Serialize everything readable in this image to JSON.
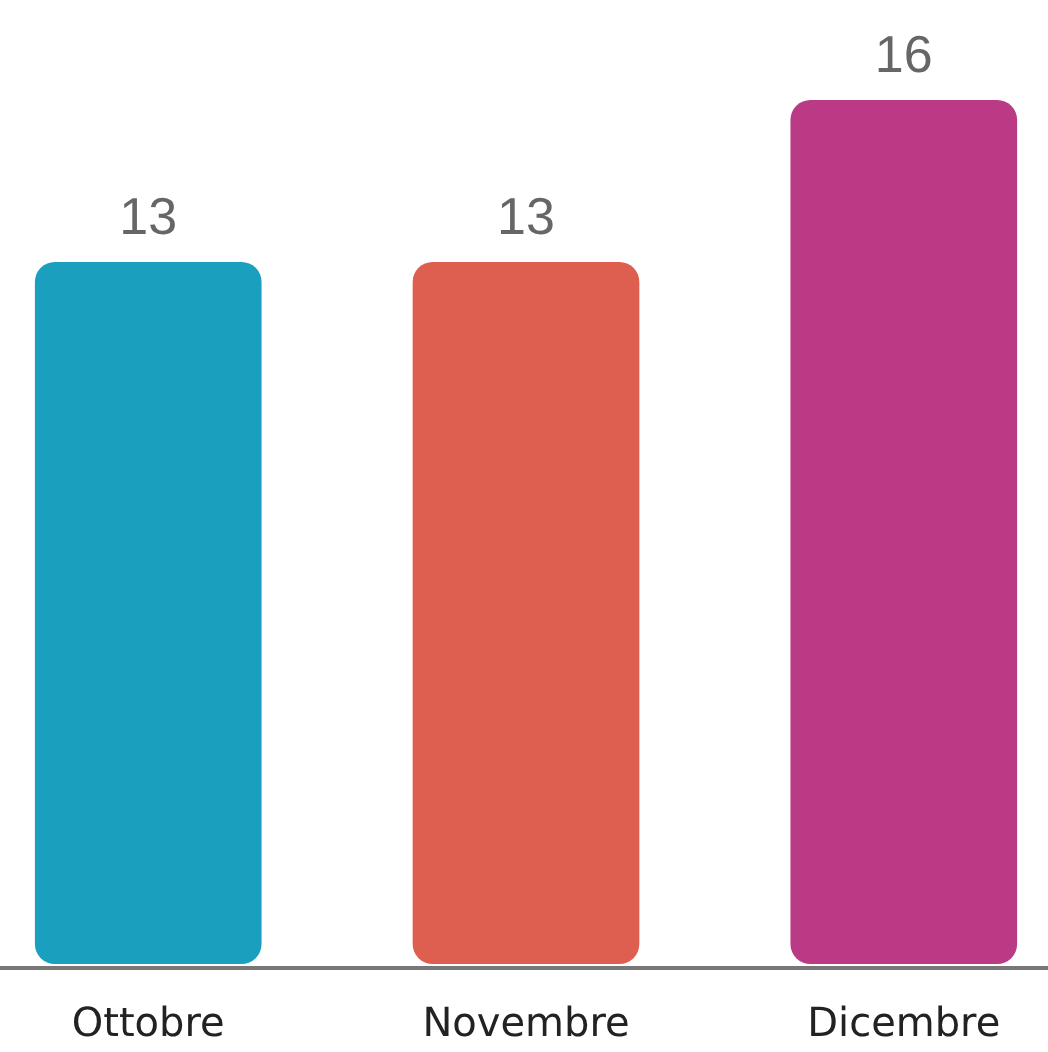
{
  "chart_data": {
    "type": "bar",
    "categories": [
      "Ottobre",
      "Novembre",
      "Dicembre"
    ],
    "values": [
      13,
      13,
      16
    ],
    "colors": [
      "#1a9fbf",
      "#de5f4f",
      "#bb3a86"
    ],
    "data_labels": true
  }
}
